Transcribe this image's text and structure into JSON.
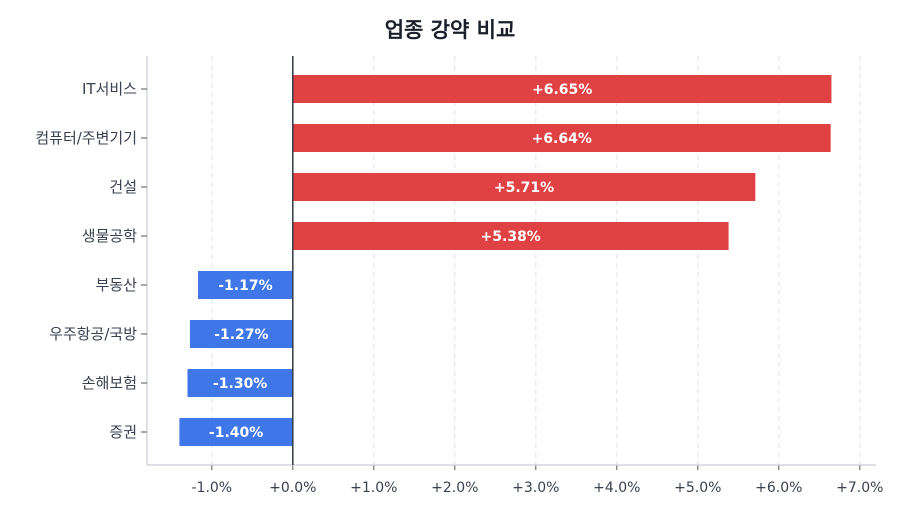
{
  "chart_data": {
    "type": "bar",
    "orientation": "horizontal",
    "title": "업종 강약 비교",
    "categories": [
      "IT서비스",
      "컴퓨터/주변기기",
      "건설",
      "생물공학",
      "부동산",
      "우주항공/국방",
      "손해보험",
      "증권"
    ],
    "values": [
      6.65,
      6.64,
      5.71,
      5.38,
      -1.17,
      -1.27,
      -1.3,
      -1.4
    ],
    "data_labels": [
      "+6.65%",
      "+6.64%",
      "+5.71%",
      "+5.38%",
      "-1.17%",
      "-1.27%",
      "-1.30%",
      "-1.40%"
    ],
    "xlim": [
      -1.8,
      7.2
    ],
    "xticks": [
      -1.0,
      0.0,
      1.0,
      2.0,
      3.0,
      4.0,
      5.0,
      6.0,
      7.0
    ],
    "xtick_labels": [
      "-1.0%",
      "+0.0%",
      "+1.0%",
      "+2.0%",
      "+3.0%",
      "+4.0%",
      "+5.0%",
      "+6.0%",
      "+7.0%"
    ],
    "xlabel": "",
    "ylabel": "",
    "grid": "vertical dashed",
    "colors": {
      "positive": "#e04244",
      "negative": "#3f76e8"
    }
  }
}
